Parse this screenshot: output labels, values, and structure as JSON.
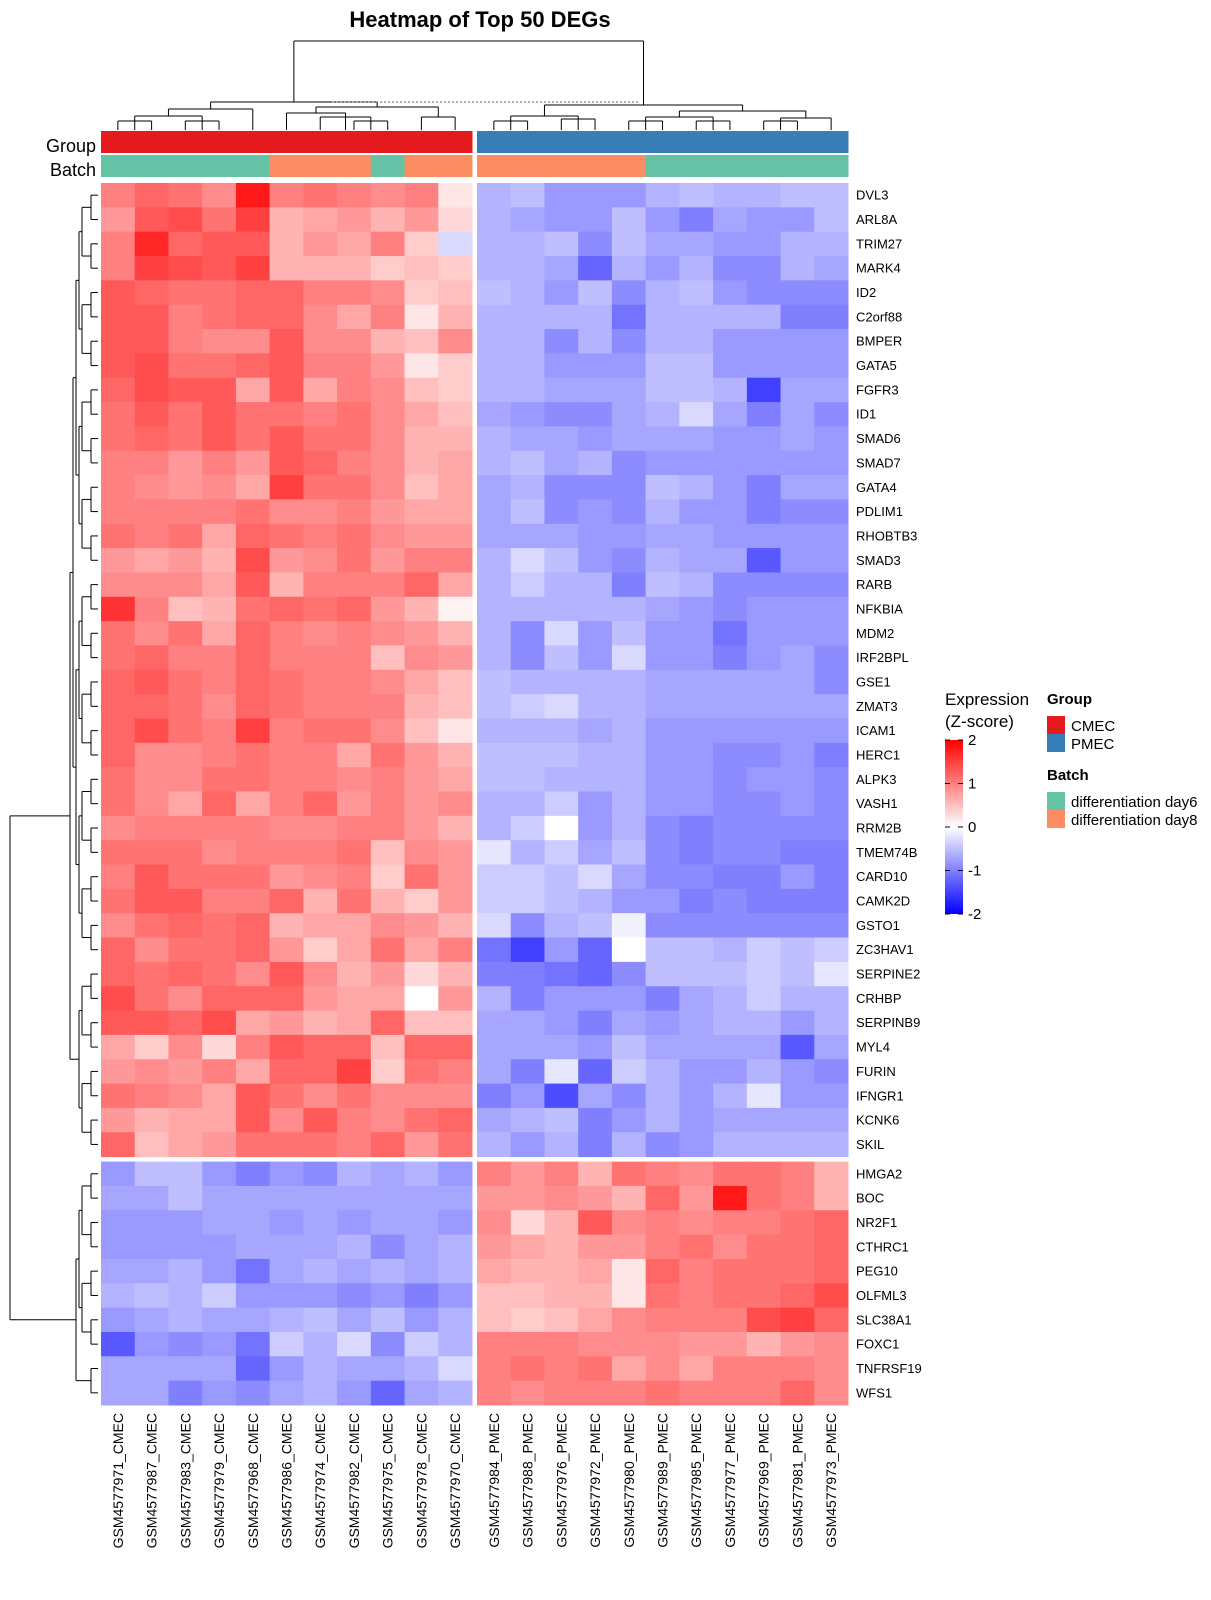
{
  "chart_data": {
    "type": "heatmap",
    "title": "Heatmap of Top 50 DEGs",
    "columns": [
      "GSM4577971_CMEC",
      "GSM4577987_CMEC",
      "GSM4577983_CMEC",
      "GSM4577979_CMEC",
      "GSM4577968_CMEC",
      "GSM4577986_CMEC",
      "GSM4577974_CMEC",
      "GSM4577982_CMEC",
      "GSM4577975_CMEC",
      "GSM4577978_CMEC",
      "GSM4577970_CMEC",
      "GSM4577984_PMEC",
      "GSM4577988_PMEC",
      "GSM4577976_PMEC",
      "GSM4577972_PMEC",
      "GSM4577980_PMEC",
      "GSM4577989_PMEC",
      "GSM4577985_PMEC",
      "GSM4577977_PMEC",
      "GSM4577969_PMEC",
      "GSM4577981_PMEC",
      "GSM4577973_PMEC"
    ],
    "rows": [
      "DVL3",
      "ARL8A",
      "TRIM27",
      "MARK4",
      "ID2",
      "C2orf88",
      "BMPER",
      "GATA5",
      "FGFR3",
      "ID1",
      "SMAD6",
      "SMAD7",
      "GATA4",
      "PDLIM1",
      "RHOBTB3",
      "SMAD3",
      "RARB",
      "NFKBIA",
      "MDM2",
      "IRF2BPL",
      "GSE1",
      "ZMAT3",
      "ICAM1",
      "HERC1",
      "ALPK3",
      "VASH1",
      "RRM2B",
      "TMEM74B",
      "CARD10",
      "CAMK2D",
      "GSTO1",
      "ZC3HAV1",
      "SERPINE2",
      "CRHBP",
      "SERPINB9",
      "MYL4",
      "FURIN",
      "IFNGR1",
      "KCNK6",
      "SKIL",
      "HMGA2",
      "BOC",
      "NR2F1",
      "CTHRC1",
      "PEG10",
      "OLFML3",
      "SLC38A1",
      "FOXC1",
      "TNFRSF19",
      "WFS1"
    ],
    "column_split_after": 11,
    "row_split_after": 40,
    "values": [
      [
        1.0,
        1.2,
        1.1,
        0.9,
        1.8,
        1.0,
        1.1,
        1.0,
        0.9,
        1.0,
        0.2,
        -0.6,
        -0.5,
        -0.8,
        -0.8,
        -0.8,
        -0.6,
        -0.5,
        -0.6,
        -0.6,
        -0.5,
        -0.5
      ],
      [
        0.8,
        1.3,
        1.4,
        1.1,
        1.5,
        0.6,
        0.7,
        0.8,
        0.6,
        0.8,
        0.3,
        -0.6,
        -0.7,
        -0.8,
        -0.8,
        -0.5,
        -0.8,
        -1.0,
        -0.7,
        -0.8,
        -0.8,
        -0.5
      ],
      [
        1.0,
        1.7,
        1.2,
        1.3,
        1.3,
        0.6,
        0.8,
        0.7,
        1.0,
        0.4,
        -0.3,
        -0.6,
        -0.6,
        -0.5,
        -0.9,
        -0.5,
        -0.7,
        -0.7,
        -0.8,
        -0.8,
        -0.6,
        -0.6
      ],
      [
        1.0,
        1.5,
        1.4,
        1.3,
        1.5,
        0.6,
        0.6,
        0.6,
        0.4,
        0.5,
        0.4,
        -0.6,
        -0.6,
        -0.7,
        -1.2,
        -0.6,
        -0.8,
        -0.6,
        -0.9,
        -0.9,
        -0.6,
        -0.7
      ],
      [
        1.3,
        1.2,
        1.1,
        1.1,
        1.2,
        1.2,
        1.0,
        1.0,
        0.9,
        0.4,
        0.5,
        -0.5,
        -0.6,
        -0.8,
        -0.5,
        -0.9,
        -0.6,
        -0.5,
        -0.8,
        -0.9,
        -0.9,
        -0.9
      ],
      [
        1.3,
        1.3,
        1.0,
        1.1,
        1.2,
        1.2,
        0.9,
        0.7,
        1.0,
        0.2,
        0.6,
        -0.6,
        -0.6,
        -0.6,
        -0.6,
        -1.1,
        -0.6,
        -0.6,
        -0.6,
        -0.6,
        -1.0,
        -1.0
      ],
      [
        1.3,
        1.3,
        1.0,
        0.9,
        0.9,
        1.3,
        0.9,
        0.9,
        0.6,
        0.5,
        0.9,
        -0.6,
        -0.6,
        -0.9,
        -0.6,
        -0.9,
        -0.6,
        -0.6,
        -0.8,
        -0.8,
        -0.8,
        -0.8
      ],
      [
        1.3,
        1.4,
        1.1,
        1.1,
        1.2,
        1.3,
        1.0,
        1.0,
        0.8,
        0.2,
        0.4,
        -0.6,
        -0.6,
        -0.8,
        -0.8,
        -0.8,
        -0.5,
        -0.5,
        -0.8,
        -0.8,
        -0.8,
        -0.8
      ],
      [
        1.2,
        1.4,
        1.3,
        1.3,
        0.7,
        1.3,
        0.7,
        1.0,
        0.9,
        0.5,
        0.4,
        -0.6,
        -0.6,
        -0.7,
        -0.7,
        -0.7,
        -0.5,
        -0.5,
        -0.6,
        -1.5,
        -0.7,
        -0.7
      ],
      [
        1.1,
        1.3,
        1.1,
        1.3,
        1.1,
        1.1,
        1.0,
        1.1,
        0.9,
        0.7,
        0.5,
        -0.7,
        -0.8,
        -0.9,
        -0.9,
        -0.7,
        -0.6,
        -0.3,
        -0.7,
        -1.0,
        -0.7,
        -0.9
      ],
      [
        1.1,
        1.2,
        1.1,
        1.3,
        1.1,
        1.3,
        1.1,
        1.1,
        0.9,
        0.6,
        0.6,
        -0.6,
        -0.7,
        -0.7,
        -0.8,
        -0.7,
        -0.7,
        -0.7,
        -0.8,
        -0.8,
        -0.7,
        -0.8
      ],
      [
        1.0,
        1.0,
        0.8,
        1.0,
        0.8,
        1.3,
        1.2,
        1.0,
        0.9,
        0.6,
        0.7,
        -0.6,
        -0.5,
        -0.7,
        -0.6,
        -0.9,
        -0.8,
        -0.8,
        -0.8,
        -0.8,
        -0.8,
        -0.8
      ],
      [
        1.0,
        0.9,
        0.8,
        0.9,
        0.7,
        1.5,
        1.1,
        1.1,
        0.9,
        0.5,
        0.7,
        -0.7,
        -0.6,
        -0.9,
        -0.9,
        -0.9,
        -0.5,
        -0.6,
        -0.8,
        -1.0,
        -0.7,
        -0.7
      ],
      [
        1.0,
        1.0,
        1.0,
        1.0,
        1.1,
        0.9,
        0.9,
        1.0,
        0.8,
        0.7,
        0.7,
        -0.7,
        -0.5,
        -0.9,
        -0.8,
        -0.9,
        -0.6,
        -0.8,
        -0.8,
        -1.0,
        -0.9,
        -0.9
      ],
      [
        1.1,
        1.0,
        1.1,
        0.7,
        1.2,
        1.1,
        1.0,
        1.1,
        0.9,
        0.8,
        0.8,
        -0.7,
        -0.7,
        -0.7,
        -0.8,
        -0.8,
        -0.7,
        -0.7,
        -0.8,
        -0.8,
        -0.8,
        -0.8
      ],
      [
        0.8,
        0.7,
        0.8,
        0.6,
        1.4,
        0.8,
        0.9,
        1.1,
        0.8,
        1.0,
        1.0,
        -0.6,
        -0.3,
        -0.5,
        -0.8,
        -0.9,
        -0.6,
        -0.7,
        -0.7,
        -1.3,
        -0.8,
        -0.8
      ],
      [
        0.9,
        0.9,
        0.9,
        0.7,
        1.3,
        0.6,
        1.0,
        1.0,
        1.0,
        1.2,
        0.7,
        -0.6,
        -0.4,
        -0.6,
        -0.6,
        -1.0,
        -0.5,
        -0.6,
        -0.9,
        -0.9,
        -0.9,
        -0.9
      ],
      [
        1.6,
        1.0,
        0.5,
        0.6,
        1.1,
        1.2,
        1.1,
        1.2,
        0.8,
        0.6,
        0.1,
        -0.6,
        -0.6,
        -0.6,
        -0.6,
        -0.6,
        -0.7,
        -0.8,
        -0.9,
        -0.8,
        -0.8,
        -0.8
      ],
      [
        1.1,
        0.9,
        1.1,
        0.7,
        1.2,
        1.0,
        0.9,
        1.0,
        0.9,
        0.8,
        0.6,
        -0.6,
        -0.9,
        -0.3,
        -0.8,
        -0.5,
        -0.8,
        -0.8,
        -1.1,
        -0.8,
        -0.8,
        -0.8
      ],
      [
        1.1,
        1.2,
        1.0,
        1.0,
        1.2,
        1.0,
        1.0,
        1.0,
        0.5,
        0.9,
        0.8,
        -0.6,
        -0.9,
        -0.5,
        -0.8,
        -0.3,
        -0.8,
        -0.8,
        -1.0,
        -0.8,
        -0.7,
        -0.9
      ],
      [
        1.2,
        1.3,
        1.1,
        1.0,
        1.2,
        1.1,
        1.0,
        1.0,
        0.9,
        0.7,
        0.5,
        -0.5,
        -0.6,
        -0.6,
        -0.6,
        -0.6,
        -0.7,
        -0.7,
        -0.7,
        -0.7,
        -0.7,
        -0.9
      ],
      [
        1.2,
        1.2,
        1.1,
        0.9,
        1.2,
        1.1,
        1.0,
        1.0,
        1.0,
        0.6,
        0.5,
        -0.5,
        -0.4,
        -0.3,
        -0.6,
        -0.6,
        -0.7,
        -0.7,
        -0.7,
        -0.7,
        -0.7,
        -0.7
      ],
      [
        1.2,
        1.4,
        1.1,
        1.0,
        1.5,
        1.0,
        1.1,
        1.1,
        0.9,
        0.5,
        0.2,
        -0.6,
        -0.6,
        -0.6,
        -0.7,
        -0.6,
        -0.8,
        -0.8,
        -0.8,
        -0.8,
        -0.8,
        -0.8
      ],
      [
        1.2,
        0.9,
        0.9,
        1.0,
        1.1,
        1.0,
        1.0,
        0.7,
        1.1,
        0.8,
        0.6,
        -0.5,
        -0.5,
        -0.5,
        -0.6,
        -0.6,
        -0.8,
        -0.8,
        -0.9,
        -0.9,
        -0.8,
        -1.0
      ],
      [
        1.1,
        0.9,
        0.9,
        1.1,
        1.1,
        1.0,
        1.0,
        0.9,
        1.0,
        0.8,
        0.7,
        -0.5,
        -0.5,
        -0.6,
        -0.6,
        -0.6,
        -0.8,
        -0.8,
        -0.9,
        -0.8,
        -0.8,
        -0.9
      ],
      [
        1.1,
        0.9,
        0.7,
        1.2,
        0.7,
        1.0,
        1.2,
        0.8,
        1.0,
        0.8,
        0.9,
        -0.6,
        -0.6,
        -0.4,
        -0.8,
        -0.6,
        -0.8,
        -0.8,
        -0.9,
        -0.9,
        -0.8,
        -0.9
      ],
      [
        0.9,
        1.0,
        1.0,
        1.0,
        1.0,
        0.9,
        0.9,
        1.0,
        1.0,
        0.8,
        0.6,
        -0.6,
        -0.4,
        0.0,
        -0.8,
        -0.6,
        -0.9,
        -1.0,
        -0.9,
        -0.9,
        -0.9,
        -0.9
      ],
      [
        1.1,
        1.1,
        1.1,
        0.9,
        1.0,
        1.0,
        1.0,
        1.1,
        0.5,
        0.9,
        0.8,
        -0.2,
        -0.6,
        -0.4,
        -0.7,
        -0.5,
        -0.9,
        -1.0,
        -0.9,
        -0.9,
        -1.0,
        -1.0
      ],
      [
        1.0,
        1.3,
        1.1,
        1.1,
        1.1,
        0.8,
        0.9,
        1.0,
        0.4,
        1.1,
        0.8,
        -0.4,
        -0.4,
        -0.5,
        -0.3,
        -0.7,
        -0.9,
        -0.9,
        -1.0,
        -1.0,
        -0.8,
        -1.0
      ],
      [
        1.1,
        1.3,
        1.3,
        1.0,
        1.0,
        1.2,
        0.6,
        1.1,
        0.6,
        0.4,
        0.8,
        -0.4,
        -0.4,
        -0.5,
        -0.6,
        -0.8,
        -0.8,
        -1.0,
        -0.9,
        -1.0,
        -1.0,
        -1.0
      ],
      [
        0.9,
        1.1,
        1.2,
        1.1,
        1.2,
        0.6,
        0.7,
        0.7,
        0.9,
        0.8,
        0.6,
        -0.3,
        -0.9,
        -0.6,
        -0.5,
        -0.1,
        -0.9,
        -0.9,
        -0.9,
        -0.9,
        -0.9,
        -0.9
      ],
      [
        1.2,
        0.9,
        1.1,
        1.1,
        1.2,
        0.8,
        0.4,
        0.7,
        1.1,
        0.7,
        1.0,
        -1.1,
        -1.5,
        -0.8,
        -1.2,
        0.0,
        -0.5,
        -0.5,
        -0.6,
        -0.4,
        -0.5,
        -0.4
      ],
      [
        1.2,
        1.1,
        1.2,
        1.1,
        0.9,
        1.3,
        0.9,
        0.6,
        0.8,
        0.3,
        0.6,
        -1.0,
        -1.0,
        -1.1,
        -1.2,
        -0.9,
        -0.5,
        -0.5,
        -0.5,
        -0.4,
        -0.5,
        -0.2
      ],
      [
        1.4,
        1.1,
        0.9,
        1.2,
        1.2,
        1.2,
        0.8,
        0.7,
        0.7,
        0.0,
        0.8,
        -0.6,
        -1.0,
        -0.8,
        -0.8,
        -0.8,
        -1.0,
        -0.7,
        -0.6,
        -0.4,
        -0.6,
        -0.6
      ],
      [
        1.3,
        1.3,
        1.2,
        1.4,
        0.7,
        0.8,
        0.6,
        0.7,
        1.2,
        0.5,
        0.5,
        -0.7,
        -0.7,
        -0.8,
        -1.0,
        -0.7,
        -0.8,
        -0.7,
        -0.6,
        -0.6,
        -0.8,
        -0.6
      ],
      [
        0.7,
        0.4,
        0.9,
        0.3,
        1.0,
        1.3,
        1.2,
        1.2,
        0.5,
        1.2,
        1.2,
        -0.7,
        -0.7,
        -0.7,
        -0.8,
        -0.5,
        -0.7,
        -0.7,
        -0.7,
        -0.7,
        -1.3,
        -0.7
      ],
      [
        0.8,
        0.9,
        0.8,
        1.0,
        0.7,
        1.2,
        1.2,
        1.5,
        0.4,
        1.1,
        1.0,
        -0.7,
        -1.0,
        -0.2,
        -1.2,
        -0.4,
        -0.6,
        -0.8,
        -0.8,
        -0.6,
        -0.8,
        -0.9
      ],
      [
        1.1,
        1.0,
        0.9,
        0.7,
        1.3,
        1.1,
        0.9,
        1.1,
        0.9,
        0.9,
        0.9,
        -1.0,
        -0.8,
        -1.4,
        -0.7,
        -0.9,
        -0.6,
        -0.8,
        -0.6,
        -0.2,
        -0.8,
        -0.8
      ],
      [
        0.8,
        0.6,
        0.7,
        0.7,
        1.3,
        0.9,
        1.3,
        1.0,
        0.9,
        1.1,
        1.2,
        -0.7,
        -0.6,
        -0.5,
        -1.0,
        -0.8,
        -0.6,
        -0.8,
        -0.7,
        -0.7,
        -0.7,
        -0.7
      ],
      [
        1.2,
        0.5,
        0.7,
        0.8,
        1.1,
        1.1,
        1.1,
        1.0,
        1.2,
        0.8,
        1.1,
        -0.6,
        -0.8,
        -0.6,
        -1.0,
        -0.6,
        -0.9,
        -0.8,
        -0.6,
        -0.6,
        -0.6,
        -0.6
      ],
      [
        -0.8,
        -0.5,
        -0.5,
        -0.8,
        -1.0,
        -0.8,
        -0.9,
        -0.6,
        -0.7,
        -0.6,
        -0.8,
        1.0,
        0.8,
        1.0,
        0.6,
        1.1,
        1.0,
        0.9,
        1.1,
        1.1,
        1.0,
        0.6
      ],
      [
        -0.7,
        -0.7,
        -0.5,
        -0.7,
        -0.7,
        -0.7,
        -0.7,
        -0.7,
        -0.7,
        -0.7,
        -0.7,
        0.8,
        0.8,
        0.9,
        0.8,
        0.6,
        1.2,
        0.8,
        1.8,
        1.1,
        1.0,
        0.6
      ],
      [
        -0.8,
        -0.8,
        -0.8,
        -0.7,
        -0.7,
        -0.8,
        -0.7,
        -0.8,
        -0.7,
        -0.7,
        -0.8,
        0.9,
        0.3,
        0.6,
        1.3,
        0.9,
        1.0,
        0.9,
        1.0,
        1.0,
        1.1,
        1.2
      ],
      [
        -0.8,
        -0.8,
        -0.8,
        -0.8,
        -0.7,
        -0.7,
        -0.7,
        -0.6,
        -0.9,
        -0.7,
        -0.6,
        0.8,
        0.7,
        0.6,
        0.8,
        0.8,
        1.0,
        1.1,
        0.9,
        1.1,
        1.1,
        1.2
      ],
      [
        -0.7,
        -0.7,
        -0.6,
        -0.8,
        -1.1,
        -0.7,
        -0.6,
        -0.7,
        -0.6,
        -0.7,
        -0.6,
        0.7,
        0.6,
        0.6,
        0.7,
        0.2,
        1.2,
        1.0,
        1.1,
        1.1,
        1.1,
        1.2
      ],
      [
        -0.6,
        -0.5,
        -0.6,
        -0.4,
        -0.8,
        -0.8,
        -0.8,
        -0.9,
        -0.8,
        -1.0,
        -0.8,
        0.5,
        0.5,
        0.6,
        0.6,
        0.2,
        1.1,
        1.0,
        1.1,
        1.1,
        1.2,
        1.4
      ],
      [
        -0.8,
        -0.7,
        -0.6,
        -0.7,
        -0.7,
        -0.6,
        -0.5,
        -0.7,
        -0.5,
        -0.8,
        -0.6,
        0.5,
        0.4,
        0.5,
        0.7,
        0.9,
        1.0,
        1.0,
        1.0,
        1.4,
        1.5,
        1.2
      ],
      [
        -1.3,
        -0.8,
        -0.9,
        -0.8,
        -1.1,
        -0.4,
        -0.6,
        -0.3,
        -0.9,
        -0.4,
        -0.6,
        1.0,
        1.0,
        1.0,
        0.9,
        0.9,
        0.9,
        0.8,
        0.8,
        0.6,
        0.8,
        0.9
      ],
      [
        -0.7,
        -0.7,
        -0.7,
        -0.7,
        -1.2,
        -0.8,
        -0.6,
        -0.7,
        -0.7,
        -0.6,
        -0.3,
        1.0,
        1.1,
        1.0,
        1.1,
        0.7,
        0.9,
        0.7,
        1.0,
        1.0,
        1.0,
        0.9
      ],
      [
        -0.7,
        -0.7,
        -1.0,
        -0.8,
        -0.9,
        -0.7,
        -0.6,
        -0.8,
        -1.2,
        -0.7,
        -0.6,
        1.0,
        0.9,
        1.0,
        1.0,
        1.0,
        1.1,
        1.0,
        1.0,
        1.0,
        1.2,
        0.9
      ]
    ],
    "group_label": "Group",
    "batch_label": "Batch",
    "group": [
      "CMEC",
      "CMEC",
      "CMEC",
      "CMEC",
      "CMEC",
      "CMEC",
      "CMEC",
      "CMEC",
      "CMEC",
      "CMEC",
      "CMEC",
      "PMEC",
      "PMEC",
      "PMEC",
      "PMEC",
      "PMEC",
      "PMEC",
      "PMEC",
      "PMEC",
      "PMEC",
      "PMEC",
      "PMEC"
    ],
    "batch": [
      "differentiation day6",
      "differentiation day6",
      "differentiation day6",
      "differentiation day6",
      "differentiation day6",
      "differentiation day8",
      "differentiation day8",
      "differentiation day8",
      "differentiation day6",
      "differentiation day8",
      "differentiation day8",
      "differentiation day8",
      "differentiation day8",
      "differentiation day8",
      "differentiation day8",
      "differentiation day8",
      "differentiation day6",
      "differentiation day6",
      "differentiation day6",
      "differentiation day6",
      "differentiation day6",
      "differentiation day6"
    ],
    "colorbar": {
      "title_line1": "Expression",
      "title_line2": "(Z-score)",
      "range": [
        -2,
        2
      ],
      "ticks": [
        "2",
        "1",
        "0",
        "-1",
        "-2"
      ],
      "colors": {
        "low": "#0000ff",
        "mid": "#ffffff",
        "high": "#ff0000"
      }
    },
    "legend_group": {
      "title": "Group",
      "items": [
        {
          "label": "CMEC",
          "color": "#e41a1c"
        },
        {
          "label": "PMEC",
          "color": "#377eb8"
        }
      ]
    },
    "legend_batch": {
      "title": "Batch",
      "items": [
        {
          "label": "differentiation day6",
          "color": "#66c2a5"
        },
        {
          "label": "differentiation day8",
          "color": "#fc8d62"
        }
      ]
    }
  }
}
